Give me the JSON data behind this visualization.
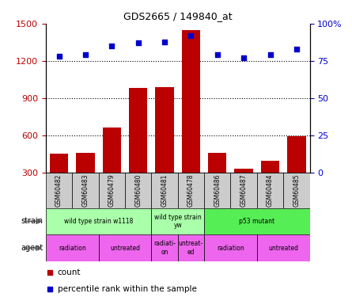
{
  "title": "GDS2665 / 149840_at",
  "samples": [
    "GSM60482",
    "GSM60483",
    "GSM60479",
    "GSM60480",
    "GSM60481",
    "GSM60478",
    "GSM60486",
    "GSM60487",
    "GSM60484",
    "GSM60485"
  ],
  "counts": [
    450,
    460,
    660,
    980,
    990,
    1450,
    460,
    330,
    390,
    590
  ],
  "percentile": [
    78,
    79,
    85,
    87,
    88,
    92,
    79,
    77,
    79,
    83
  ],
  "bar_color": "#bb0000",
  "dot_color": "#0000cc",
  "ylim_left": [
    300,
    1500
  ],
  "ylim_right": [
    0,
    100
  ],
  "yticks_left": [
    300,
    600,
    900,
    1200,
    1500
  ],
  "yticks_right": [
    0,
    25,
    50,
    75,
    100
  ],
  "ytick_labels_right": [
    "0",
    "25",
    "50",
    "75",
    "100%"
  ],
  "grid_values": [
    600,
    900,
    1200
  ],
  "strain_groups": [
    {
      "label": "wild type strain w1118",
      "start": 0,
      "end": 4,
      "color": "#aaffaa"
    },
    {
      "label": "wild type strain\nyw",
      "start": 4,
      "end": 6,
      "color": "#aaffaa"
    },
    {
      "label": "p53 mutant",
      "start": 6,
      "end": 10,
      "color": "#55ee55"
    }
  ],
  "agent_groups": [
    {
      "label": "radiation",
      "start": 0,
      "end": 2,
      "color": "#ee66ee"
    },
    {
      "label": "untreated",
      "start": 2,
      "end": 4,
      "color": "#ee66ee"
    },
    {
      "label": "radiati-\non",
      "start": 4,
      "end": 5,
      "color": "#ee66ee"
    },
    {
      "label": "untreat-\ned",
      "start": 5,
      "end": 6,
      "color": "#ee66ee"
    },
    {
      "label": "radiation",
      "start": 6,
      "end": 8,
      "color": "#ee66ee"
    },
    {
      "label": "untreated",
      "start": 8,
      "end": 10,
      "color": "#ee66ee"
    }
  ],
  "sample_box_color": "#cccccc",
  "plot_bg_color": "#ffffff",
  "legend_count_color": "#bb0000",
  "legend_dot_color": "#0000cc"
}
